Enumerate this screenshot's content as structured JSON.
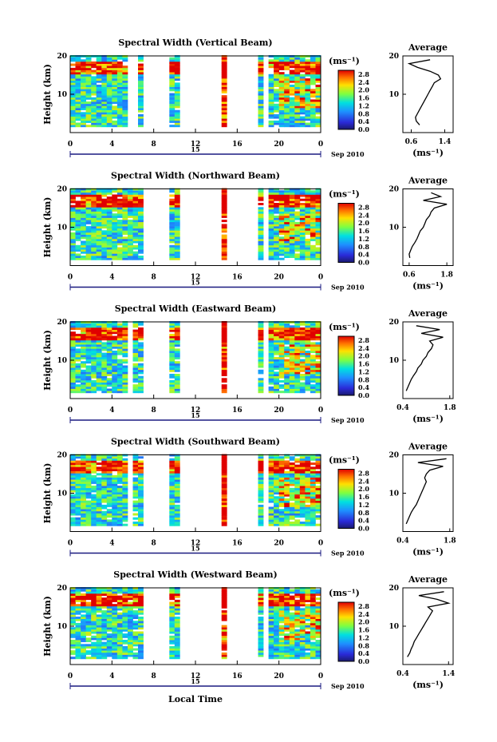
{
  "figure": {
    "xlabel": "Local Time",
    "date_day": "15",
    "date_label": "Sep 2010"
  },
  "chart_data": [
    {
      "type": "heatmap",
      "title": "Spectral Width (Vertical Beam)",
      "xlabel": "Local Time",
      "ylabel": "Height (km)",
      "xticks": [
        "0",
        "4",
        "8",
        "12",
        "16",
        "20",
        "0"
      ],
      "yticks": [
        "20",
        "10"
      ],
      "xlim": [
        0,
        24
      ],
      "ylim": [
        0,
        20
      ],
      "colorbar": {
        "unit": "(ms⁻¹)",
        "ticks": [
          "2.8",
          "2.4",
          "2.0",
          "1.6",
          "1.2",
          "0.8",
          "0.4",
          "0.0"
        ],
        "range": [
          0,
          3.0
        ]
      },
      "data_gaps_hours": [
        [
          5.6,
          6.3
        ],
        [
          7.0,
          9.6
        ],
        [
          10.4,
          14.3
        ],
        [
          15.1,
          18.0
        ],
        [
          18.4,
          18.9
        ]
      ],
      "average_profile": {
        "title": "Average",
        "xlabel": "(ms⁻¹)",
        "xticks": [
          "0.6",
          "1.4"
        ],
        "yticks": [
          "20",
          "10"
        ],
        "xlim": [
          0.4,
          1.6
        ],
        "heights_km": [
          19,
          18,
          17,
          16,
          15,
          14,
          13,
          12,
          11,
          10,
          9,
          8,
          7,
          6,
          5,
          4,
          3,
          2
        ],
        "values": [
          1.05,
          0.55,
          0.75,
          1.05,
          1.25,
          1.3,
          1.15,
          1.1,
          1.05,
          1.0,
          0.95,
          0.9,
          0.85,
          0.8,
          0.75,
          0.7,
          0.72,
          0.8
        ]
      }
    },
    {
      "type": "heatmap",
      "title": "Spectral Width (Northward Beam)",
      "xlabel": "Local Time",
      "ylabel": "Height (km)",
      "xticks": [
        "0",
        "4",
        "8",
        "12",
        "16",
        "20",
        "0"
      ],
      "yticks": [
        "20",
        "10"
      ],
      "xlim": [
        0,
        24
      ],
      "ylim": [
        0,
        20
      ],
      "colorbar": {
        "unit": "(ms⁻¹)",
        "ticks": [
          "2.8",
          "2.4",
          "2.0",
          "1.6",
          "1.2",
          "0.8",
          "0.4",
          "0.0"
        ],
        "range": [
          0,
          3.0
        ]
      },
      "data_gaps_hours": [
        [
          5.8,
          6.0
        ],
        [
          7.0,
          9.6
        ],
        [
          10.5,
          14.3
        ],
        [
          15.1,
          18.0
        ],
        [
          18.4,
          18.9
        ]
      ],
      "average_profile": {
        "title": "Average",
        "xlabel": "(ms⁻¹)",
        "xticks": [
          "0.6",
          "1.8"
        ],
        "yticks": [
          "20",
          "10"
        ],
        "xlim": [
          0.4,
          2.0
        ],
        "heights_km": [
          19,
          18,
          17,
          16,
          15,
          14,
          13,
          12,
          11,
          10,
          9,
          8,
          7,
          6,
          5,
          4,
          3,
          2
        ],
        "values": [
          1.3,
          1.6,
          1.05,
          1.8,
          1.4,
          1.3,
          1.25,
          1.15,
          1.1,
          1.05,
          0.95,
          0.9,
          0.85,
          0.78,
          0.7,
          0.65,
          0.6,
          0.62
        ]
      }
    },
    {
      "type": "heatmap",
      "title": "Spectral Width (Eastward Beam)",
      "xlabel": "Local Time",
      "ylabel": "Height (km)",
      "xticks": [
        "0",
        "4",
        "8",
        "12",
        "16",
        "20",
        "0"
      ],
      "yticks": [
        "20",
        "10"
      ],
      "xlim": [
        0,
        24
      ],
      "ylim": [
        0,
        20
      ],
      "colorbar": {
        "unit": "(ms⁻¹)",
        "ticks": [
          "2.8",
          "2.4",
          "2.0",
          "1.6",
          "1.2",
          "0.8",
          "0.4",
          "0.0"
        ],
        "range": [
          0,
          3.0
        ]
      },
      "data_gaps_hours": [
        [
          5.7,
          6.1
        ],
        [
          7.0,
          9.6
        ],
        [
          10.4,
          14.3
        ],
        [
          15.1,
          18.0
        ],
        [
          18.4,
          18.9
        ]
      ],
      "average_profile": {
        "title": "Average",
        "xlabel": "(ms⁻¹)",
        "xticks": [
          "0.4",
          "1.8"
        ],
        "yticks": [
          "20",
          "10"
        ],
        "xlim": [
          0.4,
          1.9
        ],
        "heights_km": [
          19,
          18,
          17,
          16,
          15,
          14,
          13,
          12,
          11,
          10,
          9,
          8,
          7,
          6,
          5,
          4,
          3,
          2
        ],
        "values": [
          0.8,
          1.5,
          0.95,
          1.6,
          1.2,
          1.3,
          1.25,
          1.15,
          1.1,
          1.0,
          0.95,
          0.85,
          0.8,
          0.72,
          0.65,
          0.6,
          0.55,
          0.5
        ]
      }
    },
    {
      "type": "heatmap",
      "title": "Spectral Width (Southward Beam)",
      "xlabel": "Local Time",
      "ylabel": "Height (km)",
      "xticks": [
        "0",
        "4",
        "8",
        "12",
        "16",
        "20",
        "0"
      ],
      "yticks": [
        "20",
        "10"
      ],
      "xlim": [
        0,
        24
      ],
      "ylim": [
        0,
        20
      ],
      "colorbar": {
        "unit": "(ms⁻¹)",
        "ticks": [
          "2.8",
          "2.4",
          "2.0",
          "1.6",
          "1.2",
          "0.8",
          "0.4",
          "0.0"
        ],
        "range": [
          0,
          3.0
        ]
      },
      "data_gaps_hours": [
        [
          5.7,
          6.1
        ],
        [
          7.0,
          9.6
        ],
        [
          10.4,
          14.3
        ],
        [
          15.1,
          18.0
        ],
        [
          18.4,
          18.9
        ]
      ],
      "average_profile": {
        "title": "Average",
        "xlabel": "(ms⁻¹)",
        "xticks": [
          "0.4",
          "1.8"
        ],
        "yticks": [
          "20",
          "10"
        ],
        "xlim": [
          0.4,
          1.9
        ],
        "heights_km": [
          19,
          18,
          17,
          16,
          15,
          14,
          13,
          12,
          11,
          10,
          9,
          8,
          7,
          6,
          5,
          4,
          3,
          2
        ],
        "values": [
          1.7,
          0.85,
          1.6,
          1.2,
          1.1,
          1.05,
          1.1,
          1.05,
          1.0,
          0.95,
          0.9,
          0.85,
          0.8,
          0.72,
          0.65,
          0.6,
          0.55,
          0.5
        ]
      }
    },
    {
      "type": "heatmap",
      "title": "Spectral Width (Westward Beam)",
      "xlabel": "Local Time",
      "ylabel": "Height (km)",
      "xticks": [
        "0",
        "4",
        "8",
        "12",
        "16",
        "20",
        "0"
      ],
      "yticks": [
        "20",
        "10"
      ],
      "xlim": [
        0,
        24
      ],
      "ylim": [
        0,
        20
      ],
      "colorbar": {
        "unit": "(ms⁻¹)",
        "ticks": [
          "2.8",
          "2.4",
          "2.0",
          "1.6",
          "1.2",
          "0.8",
          "0.4",
          "0.0"
        ],
        "range": [
          0,
          3.0
        ]
      },
      "data_gaps_hours": [
        [
          5.8,
          6.0
        ],
        [
          7.0,
          9.6
        ],
        [
          10.4,
          14.3
        ],
        [
          15.1,
          18.0
        ],
        [
          18.4,
          18.9
        ]
      ],
      "average_profile": {
        "title": "Average",
        "xlabel": "(ms⁻¹)",
        "xticks": [
          "0.4",
          "1.4"
        ],
        "yticks": [
          "20",
          "10"
        ],
        "xlim": [
          0.4,
          1.5
        ],
        "heights_km": [
          19,
          18,
          17,
          16,
          15,
          14,
          13,
          12,
          11,
          10,
          9,
          8,
          7,
          6,
          5,
          4,
          3,
          2
        ],
        "values": [
          1.3,
          0.75,
          1.15,
          1.4,
          0.95,
          1.05,
          1.0,
          0.95,
          0.9,
          0.85,
          0.8,
          0.75,
          0.7,
          0.65,
          0.62,
          0.58,
          0.55,
          0.5
        ]
      }
    }
  ]
}
